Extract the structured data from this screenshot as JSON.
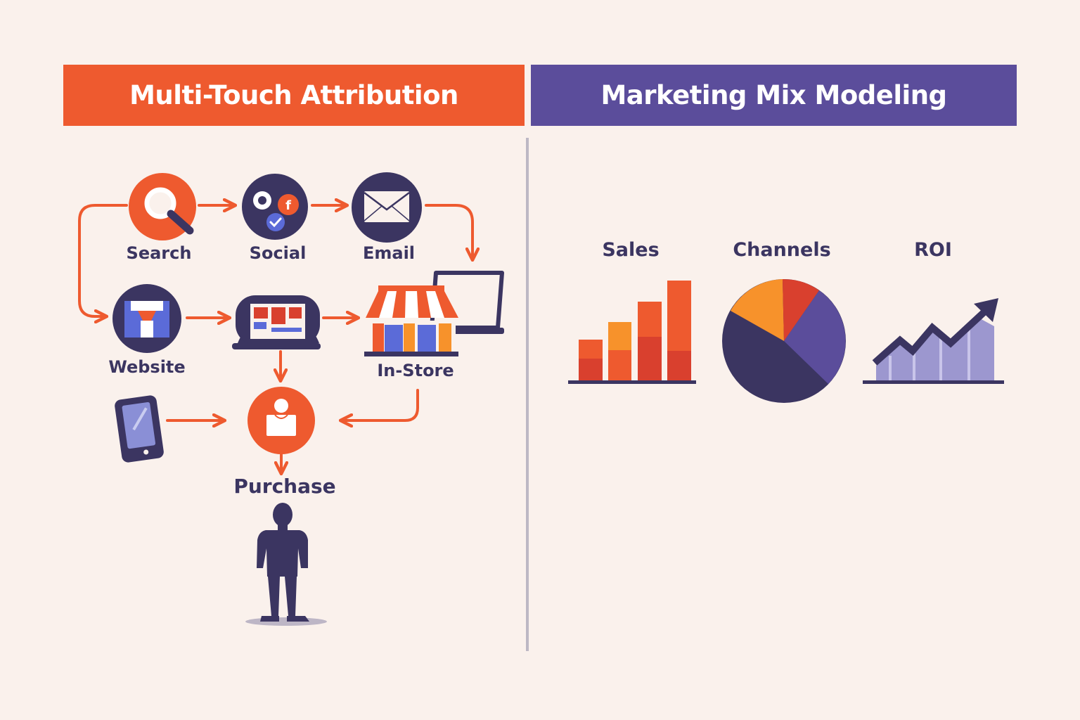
{
  "left_panel": {
    "title": "Multi-Touch Attribution",
    "touchpoints": {
      "search": "Search",
      "social": "Social",
      "email": "Email",
      "website": "Website",
      "in_store": "In-Store"
    },
    "outcome": "Purchase"
  },
  "right_panel": {
    "title": "Marketing Mix Modeling",
    "charts": {
      "sales": "Sales",
      "channels": "Channels",
      "roi": "ROI"
    }
  },
  "colors": {
    "orange": "#ee5a2f",
    "purple": "#5b4d9b",
    "navy": "#3b3561",
    "amber": "#f7922b",
    "red": "#d9402e",
    "background": "#faf1ec"
  }
}
